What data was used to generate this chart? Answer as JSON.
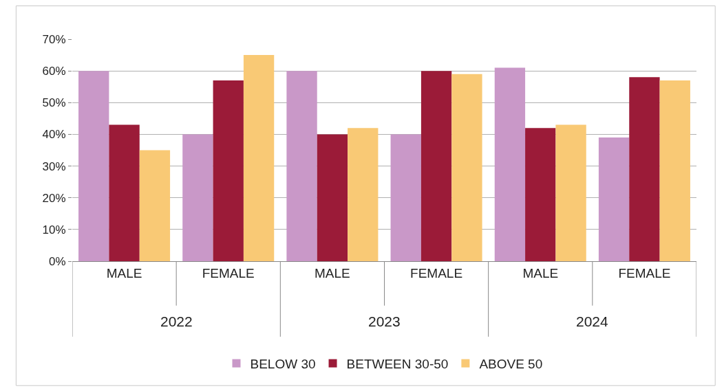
{
  "chart_data": {
    "type": "bar",
    "categories": [
      "MALE",
      "FEMALE",
      "MALE",
      "FEMALE",
      "MALE",
      "FEMALE"
    ],
    "annotations": [
      "2022",
      "2023",
      "2024"
    ],
    "series": [
      {
        "name": "BELOW 30",
        "color": "#c998c8",
        "values": [
          60,
          40,
          60,
          40,
          61,
          39
        ]
      },
      {
        "name": "BETWEEN 30-50",
        "color": "#9b1b38",
        "values": [
          43,
          57,
          40,
          60,
          42,
          58
        ]
      },
      {
        "name": "ABOVE 50",
        "color": "#f9c975",
        "values": [
          35,
          65,
          42,
          59,
          43,
          57
        ]
      }
    ],
    "ylim": [
      0,
      70
    ],
    "yticks": [
      {
        "value": 0,
        "label": "0%"
      },
      {
        "value": 10,
        "label": "10%"
      },
      {
        "value": 20,
        "label": "20%"
      },
      {
        "value": 30,
        "label": "30%"
      },
      {
        "value": 40,
        "label": "40%"
      },
      {
        "value": 50,
        "label": "50%"
      },
      {
        "value": 60,
        "label": "60%"
      },
      {
        "value": 70,
        "label": "70%"
      }
    ],
    "grid": "y",
    "legend": "bottom"
  }
}
